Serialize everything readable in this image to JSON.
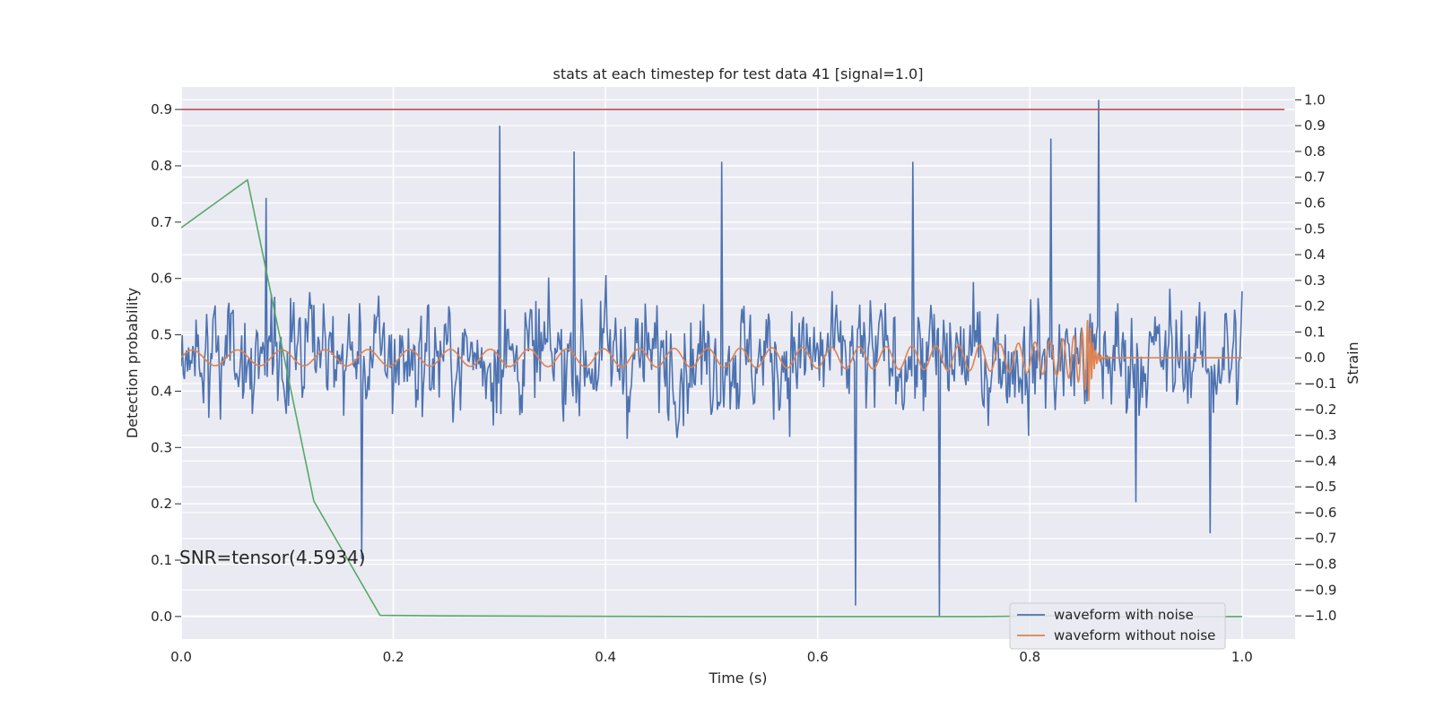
{
  "chart_data": {
    "type": "line",
    "title": "stats at each timestep for test data 41 [signal=1.0]",
    "xlabel": "Time (s)",
    "ylabel": "Detection probability",
    "ylabel_right": "Strain",
    "xlim": [
      0.0,
      1.05
    ],
    "ylim": [
      -0.04,
      0.94
    ],
    "ylim_right": [
      -1.09,
      1.05
    ],
    "x_ticks": [
      "0.0",
      "0.2",
      "0.4",
      "0.6",
      "0.8",
      "1.0"
    ],
    "x_tick_values": [
      0.0,
      0.2,
      0.4,
      0.6,
      0.8,
      1.0
    ],
    "y_ticks": [
      "0.0",
      "0.1",
      "0.2",
      "0.3",
      "0.4",
      "0.5",
      "0.6",
      "0.7",
      "0.8",
      "0.9"
    ],
    "y_tick_values": [
      0.0,
      0.1,
      0.2,
      0.3,
      0.4,
      0.5,
      0.6,
      0.7,
      0.8,
      0.9
    ],
    "y_right_ticks": [
      "1.0",
      "0.9",
      "0.8",
      "0.7",
      "0.6",
      "0.5",
      "0.4",
      "0.3",
      "0.2",
      "0.1",
      "0.0",
      "−0.1",
      "−0.2",
      "−0.3",
      "−0.4",
      "−0.5",
      "−0.6",
      "−0.7",
      "−0.8",
      "−0.9",
      "−1.0"
    ],
    "y_right_tick_values": [
      1.0,
      0.9,
      0.8,
      0.7,
      0.6,
      0.5,
      0.4,
      0.3,
      0.2,
      0.1,
      0.0,
      -0.1,
      -0.2,
      -0.3,
      -0.4,
      -0.5,
      -0.6,
      -0.7,
      -0.8,
      -0.9,
      -1.0
    ],
    "grid": true,
    "legend_position": "lower-right",
    "annotation": "SNR=tensor(4.5934)",
    "threshold": {
      "y": 0.9,
      "x": [
        0.0,
        1.04
      ],
      "color": "#c44e52"
    },
    "detection_probability": {
      "color": "#55a868",
      "x": [
        0.0,
        0.0625,
        0.125,
        0.1875,
        0.25,
        0.5,
        0.75,
        0.8125,
        0.875,
        1.0
      ],
      "y": [
        0.69,
        0.775,
        0.205,
        0.002,
        0.001,
        0.0,
        0.0,
        0.001,
        0.0,
        0.0
      ]
    },
    "series": [
      {
        "name": "waveform with noise",
        "color": "#4c72b0",
        "axis": "right",
        "n_points": 1000,
        "x_range": [
          0.0,
          1.0
        ],
        "amplitude": 0.3,
        "peaks": [
          {
            "x": 0.08,
            "y": 0.62
          },
          {
            "x": 0.17,
            "y": -0.78
          },
          {
            "x": 0.3,
            "y": 0.9
          },
          {
            "x": 0.37,
            "y": 0.8
          },
          {
            "x": 0.51,
            "y": 0.76
          },
          {
            "x": 0.636,
            "y": -0.96
          },
          {
            "x": 0.69,
            "y": 0.76
          },
          {
            "x": 0.715,
            "y": -1.0
          },
          {
            "x": 0.82,
            "y": 0.85
          },
          {
            "x": 0.865,
            "y": 1.0
          },
          {
            "x": 0.9,
            "y": -0.56
          },
          {
            "x": 0.97,
            "y": -0.68
          }
        ]
      },
      {
        "name": "waveform without noise",
        "color": "#dd8452",
        "axis": "right",
        "x_range": [
          0.0,
          1.0
        ],
        "amplitude_start": 0.03,
        "amplitude_peak": 0.2,
        "cycles_start": 22,
        "merger_x": 0.855,
        "ringdown_end_x": 0.87
      }
    ]
  }
}
